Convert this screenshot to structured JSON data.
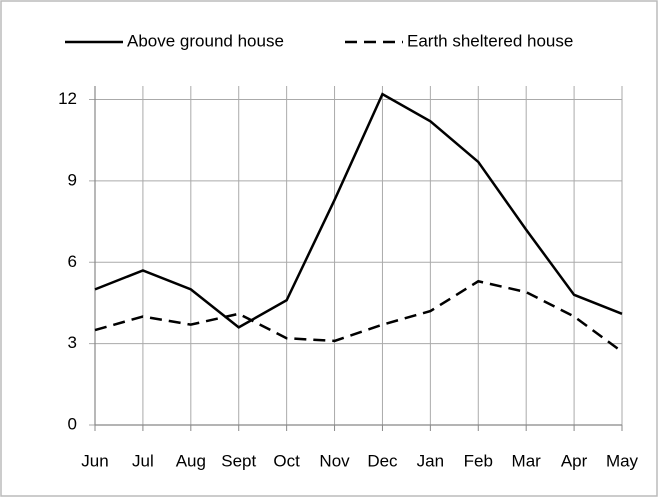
{
  "chart_data": {
    "type": "line",
    "categories": [
      "Jun",
      "Jul",
      "Aug",
      "Sept",
      "Oct",
      "Nov",
      "Dec",
      "Jan",
      "Feb",
      "Mar",
      "Apr",
      "May"
    ],
    "series": [
      {
        "name": "Above ground house",
        "color": "#000000",
        "dash": false,
        "values": [
          5.0,
          5.7,
          5.0,
          3.6,
          4.6,
          8.3,
          12.2,
          11.2,
          9.7,
          7.2,
          4.8,
          4.1
        ]
      },
      {
        "name": "Earth sheltered house",
        "color": "#000000",
        "dash": true,
        "values": [
          3.5,
          4.0,
          3.7,
          4.1,
          3.2,
          3.1,
          3.7,
          4.2,
          5.3,
          4.9,
          4.0,
          2.7
        ]
      }
    ],
    "ylim": [
      0,
      12.5
    ],
    "yticks": [
      0,
      3,
      6,
      9,
      12
    ],
    "grid": true,
    "legend": "top"
  }
}
